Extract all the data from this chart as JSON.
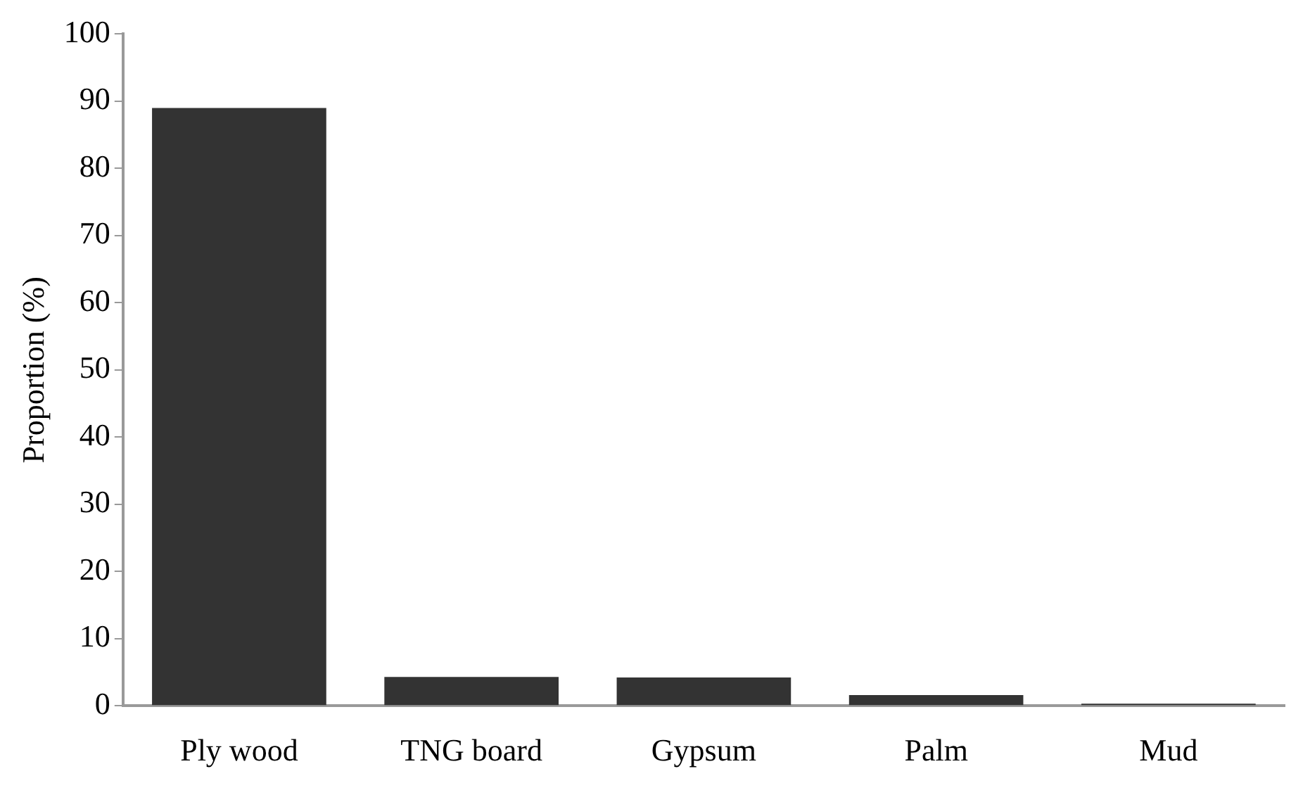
{
  "chart_data": {
    "type": "bar",
    "ylabel": "Proportion (%)",
    "categories": [
      "Ply wood",
      "TNG board",
      "Gypsum",
      "Palm",
      "Mud"
    ],
    "values": [
      89,
      4.3,
      4.2,
      1.6,
      0.3
    ],
    "color": "#333333",
    "ylim": [
      0,
      100
    ],
    "yticks": [
      0,
      10,
      20,
      30,
      40,
      50,
      60,
      70,
      80,
      90,
      100
    ],
    "grid": false
  }
}
